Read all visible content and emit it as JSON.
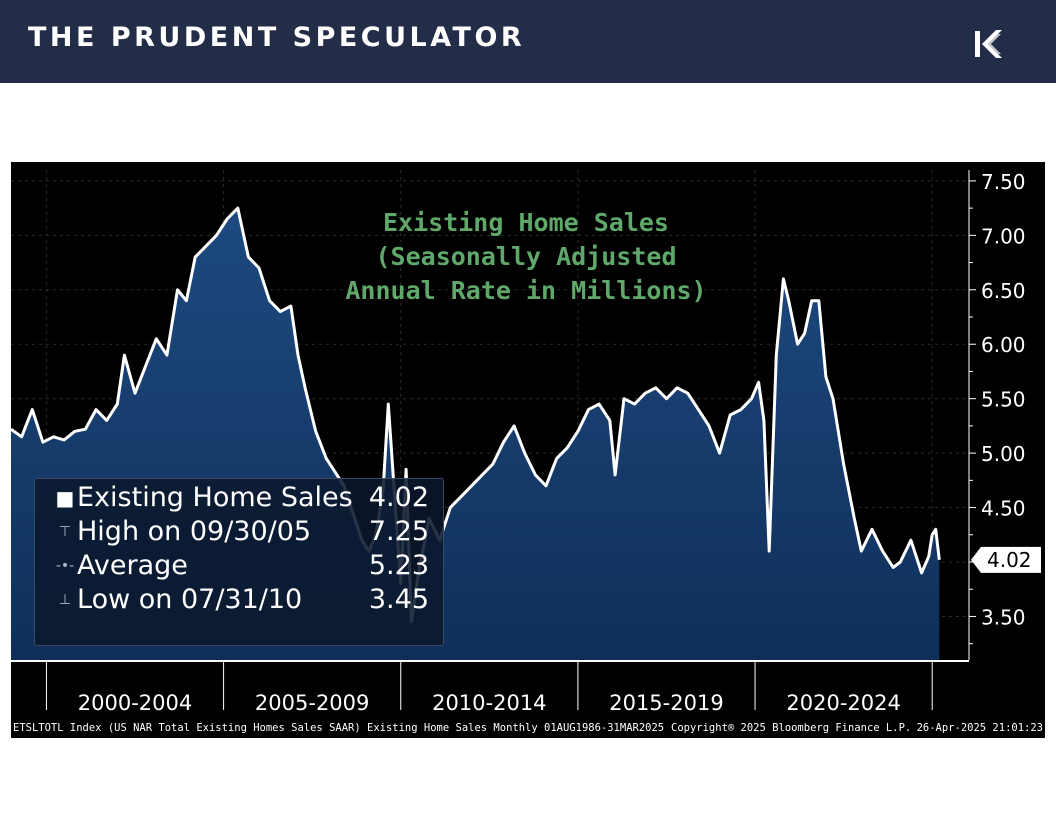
{
  "header": {
    "brand": "THE PRUDENT SPECULATOR",
    "logo_icon": "tps-logo-icon",
    "bg_color": "#232d47"
  },
  "footer": {
    "source": "ETSLTOTL Index (US NAR Total Existing Homes Sales SAAR) Existing Home Sales  Monthly 01AUG1986-31MAR2025",
    "copyright": "Copyright® 2025 Bloomberg Finance L.P.",
    "timestamp": "26-Apr-2025 21:01:23"
  },
  "legend": [
    {
      "label": "Existing Home Sales",
      "value": "4.02"
    },
    {
      "label": "High on 09/30/05",
      "value": "7.25"
    },
    {
      "label": "Average",
      "value": "5.23"
    },
    {
      "label": "Low on 07/31/10",
      "value": "3.45"
    }
  ],
  "chart_data": {
    "type": "area",
    "title": [
      "Existing Home Sales",
      "(Seasonally Adjusted",
      "Annual Rate in Millions)"
    ],
    "title_color": "#5fa86a",
    "line_color": "#ffffff",
    "fill_color": "#0f2f5a",
    "ylim": [
      3.1,
      7.6
    ],
    "yticks": [
      "7.50",
      "7.00",
      "6.50",
      "6.00",
      "5.50",
      "5.00",
      "4.50",
      "4.00",
      "3.50"
    ],
    "xlim": [
      1999.0,
      2025.7
    ],
    "x_period_labels": [
      {
        "label": "2000-2004",
        "center": 2002.5
      },
      {
        "label": "2005-2009",
        "center": 2007.5
      },
      {
        "label": "2010-2014",
        "center": 2012.5
      },
      {
        "label": "2015-2019",
        "center": 2017.5
      },
      {
        "label": "2020-2024",
        "center": 2022.5
      }
    ],
    "x_separators": [
      2000,
      2005,
      2010,
      2015,
      2020,
      2025
    ],
    "last_value_label": "4.02",
    "series": [
      {
        "x": [
          1999.0,
          1999.3,
          1999.6,
          1999.9,
          2000.2,
          2000.5,
          2000.8,
          2001.1,
          2001.4,
          2001.7,
          2002.0,
          2002.2,
          2002.5,
          2002.8,
          2003.1,
          2003.4,
          2003.7,
          2003.95,
          2004.2,
          2004.5,
          2004.8,
          2005.1,
          2005.4,
          2005.7,
          2006.0,
          2006.3,
          2006.6,
          2006.9,
          2007.1,
          2007.3,
          2007.6,
          2007.9,
          2008.2,
          2008.4,
          2008.7,
          2008.9,
          2009.1,
          2009.3,
          2009.5,
          2009.65,
          2009.85,
          2010.0,
          2010.15,
          2010.3,
          2010.5,
          2010.8,
          2011.1,
          2011.4,
          2011.7,
          2012.0,
          2012.3,
          2012.6,
          2012.9,
          2013.2,
          2013.5,
          2013.8,
          2014.1,
          2014.4,
          2014.7,
          2015.0,
          2015.3,
          2015.6,
          2015.9,
          2016.05,
          2016.3,
          2016.6,
          2016.9,
          2017.2,
          2017.5,
          2017.8,
          2018.1,
          2018.4,
          2018.7,
          2019.0,
          2019.3,
          2019.6,
          2019.9,
          2020.1,
          2020.25,
          2020.4,
          2020.6,
          2020.8,
          2020.95,
          2021.2,
          2021.4,
          2021.6,
          2021.8,
          2022.0,
          2022.2,
          2022.5,
          2022.8,
          2023.0,
          2023.3,
          2023.6,
          2023.9,
          2024.1,
          2024.4,
          2024.7,
          2024.9,
          2025.0,
          2025.1,
          2025.2
        ],
        "y": [
          5.22,
          5.15,
          5.4,
          5.1,
          5.15,
          5.12,
          5.2,
          5.22,
          5.4,
          5.3,
          5.45,
          5.9,
          5.55,
          5.8,
          6.05,
          5.9,
          6.5,
          6.4,
          6.8,
          6.9,
          7.0,
          7.15,
          7.25,
          6.8,
          6.7,
          6.4,
          6.3,
          6.35,
          5.9,
          5.6,
          5.2,
          4.95,
          4.8,
          4.7,
          4.4,
          4.2,
          4.1,
          4.25,
          4.65,
          5.45,
          4.5,
          3.8,
          4.85,
          3.45,
          3.9,
          4.4,
          4.2,
          4.5,
          4.6,
          4.7,
          4.8,
          4.9,
          5.1,
          5.25,
          5.0,
          4.8,
          4.7,
          4.95,
          5.05,
          5.2,
          5.4,
          5.45,
          5.3,
          4.8,
          5.5,
          5.45,
          5.55,
          5.6,
          5.5,
          5.6,
          5.55,
          5.4,
          5.25,
          5.0,
          5.35,
          5.4,
          5.5,
          5.65,
          5.3,
          4.1,
          5.9,
          6.6,
          6.4,
          6.0,
          6.1,
          6.4,
          6.4,
          5.7,
          5.5,
          4.9,
          4.4,
          4.1,
          4.3,
          4.1,
          3.95,
          4.0,
          4.2,
          3.9,
          4.05,
          4.25,
          4.3,
          4.02
        ]
      }
    ]
  }
}
